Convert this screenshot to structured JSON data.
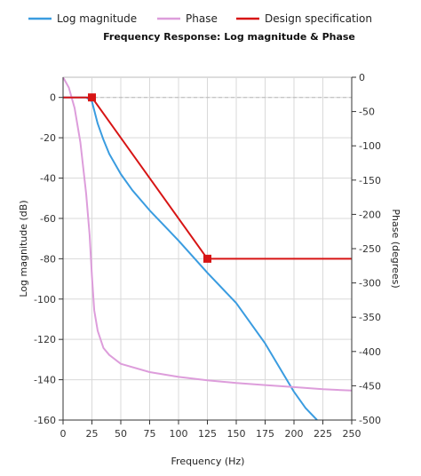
{
  "chart_data": {
    "type": "line",
    "title": "Frequency Response: Log magnitude & Phase",
    "xlabel": "Frequency (Hz)",
    "ylabel": "Log magnitude (dB)",
    "y2label": "Phase (degrees)",
    "xlim": [
      0,
      250
    ],
    "ylim": [
      -160,
      10
    ],
    "y2lim": [
      -500,
      0
    ],
    "xticks": [
      0,
      25,
      50,
      75,
      100,
      125,
      150,
      175,
      200,
      225,
      250
    ],
    "yticks": [
      0,
      -20,
      -40,
      -60,
      -80,
      -100,
      -120,
      -140,
      -160
    ],
    "y2ticks": [
      0,
      -50,
      -100,
      -150,
      -200,
      -250,
      -300,
      -350,
      -400,
      -450,
      -500
    ],
    "grid": true,
    "legend": "top",
    "series": [
      {
        "name": "Log magnitude",
        "color": "#3a9ce0",
        "axis": "left",
        "x": [
          0,
          20,
          25,
          30,
          35,
          40,
          50,
          60,
          75,
          90,
          100,
          125,
          150,
          175,
          200,
          210,
          220
        ],
        "y": [
          0,
          0,
          -2,
          -13,
          -21,
          -28,
          -38,
          -46,
          -56,
          -65,
          -71,
          -87,
          -102,
          -122,
          -146,
          -154,
          -160
        ]
      },
      {
        "name": "Phase",
        "color": "#dd9ddb",
        "axis": "right",
        "x": [
          0,
          5,
          10,
          15,
          20,
          23,
          25,
          27,
          30,
          35,
          40,
          50,
          75,
          100,
          125,
          150,
          175,
          200,
          225,
          250
        ],
        "y": [
          0,
          -15,
          -45,
          -95,
          -170,
          -230,
          -290,
          -340,
          -370,
          -395,
          -405,
          -418,
          -430,
          -437,
          -442,
          -446,
          -449,
          -452,
          -455,
          -457
        ]
      },
      {
        "name": "Design specification",
        "color": "#d71515",
        "axis": "left",
        "x": [
          0,
          25,
          125,
          250
        ],
        "y": [
          0,
          0,
          -80,
          -80
        ],
        "markers": [
          [
            25,
            0
          ],
          [
            125,
            -80
          ]
        ]
      }
    ]
  }
}
